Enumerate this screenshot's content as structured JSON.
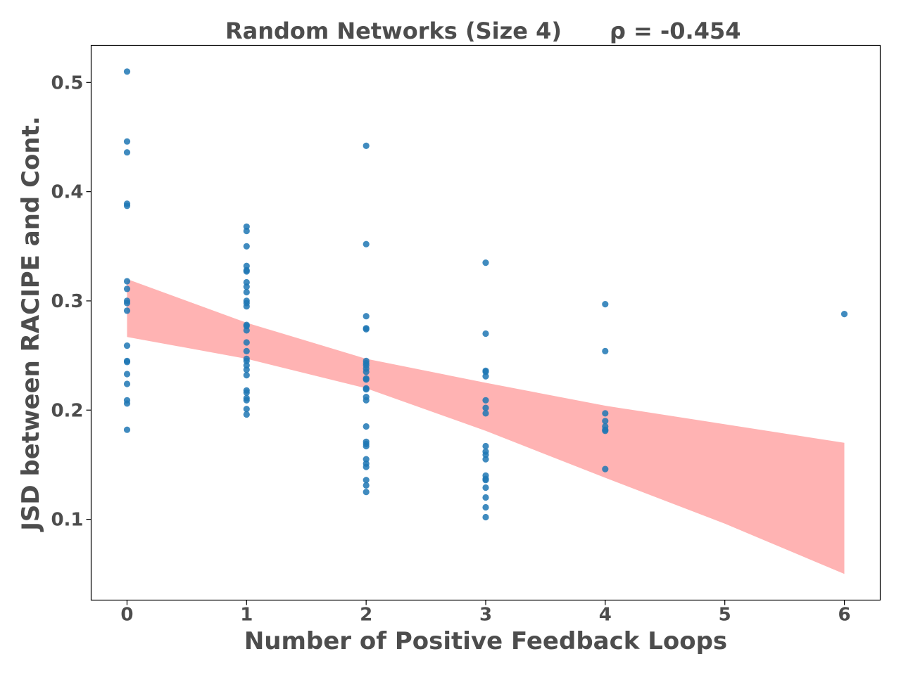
{
  "chart_data": {
    "type": "scatter",
    "title": "Random Networks (Size 4)",
    "annotation": "ρ = -0.454",
    "xlabel": "Number of Positive Feedback Loops",
    "ylabel": "JSD between RACIPE and Cont.",
    "xlim": [
      -0.3,
      6.3
    ],
    "ylim": [
      0.026,
      0.534
    ],
    "x_ticks": [
      0,
      1,
      2,
      3,
      4,
      5,
      6
    ],
    "x_tick_labels": [
      "0",
      "1",
      "2",
      "3",
      "4",
      "5",
      "6"
    ],
    "y_ticks": [
      0.1,
      0.2,
      0.3,
      0.4,
      0.5
    ],
    "y_tick_labels": [
      "0.1",
      "0.2",
      "0.3",
      "0.4",
      "0.5"
    ],
    "grid": false,
    "point_color": "#1f77b4",
    "band_color": "#ff8080",
    "series": [
      {
        "x": [
          0,
          0,
          0,
          0,
          0,
          0,
          0,
          0,
          0,
          0,
          0,
          0,
          0,
          0,
          0,
          0,
          0,
          0,
          1,
          1,
          1,
          1,
          1,
          1,
          1,
          1,
          1,
          1,
          1,
          1,
          1,
          1,
          1,
          1,
          1,
          1,
          1,
          1,
          1,
          1,
          1,
          1,
          1,
          1,
          1,
          1,
          2,
          2,
          2,
          2,
          2,
          2,
          2,
          2,
          2,
          2,
          2,
          2,
          2,
          2,
          2,
          2,
          2,
          2,
          2,
          2,
          2,
          2,
          2,
          2,
          2,
          2,
          3,
          3,
          3,
          3,
          3,
          3,
          3,
          3,
          3,
          3,
          3,
          3,
          3,
          3,
          3,
          3,
          3,
          3,
          3,
          4,
          4,
          4,
          4,
          4,
          4,
          4,
          4,
          6
        ],
        "y": [
          0.51,
          0.446,
          0.436,
          0.389,
          0.387,
          0.318,
          0.311,
          0.3,
          0.298,
          0.291,
          0.259,
          0.245,
          0.244,
          0.233,
          0.224,
          0.209,
          0.206,
          0.182,
          0.368,
          0.364,
          0.35,
          0.332,
          0.328,
          0.327,
          0.317,
          0.313,
          0.308,
          0.3,
          0.298,
          0.295,
          0.278,
          0.277,
          0.273,
          0.262,
          0.254,
          0.247,
          0.245,
          0.241,
          0.237,
          0.232,
          0.218,
          0.216,
          0.211,
          0.209,
          0.201,
          0.196,
          0.131,
          0.442,
          0.352,
          0.286,
          0.275,
          0.274,
          0.245,
          0.243,
          0.241,
          0.238,
          0.235,
          0.229,
          0.228,
          0.22,
          0.219,
          0.212,
          0.209,
          0.185,
          0.171,
          0.169,
          0.167,
          0.155,
          0.151,
          0.148,
          0.136,
          0.125,
          0.111,
          0.335,
          0.27,
          0.236,
          0.235,
          0.231,
          0.209,
          0.202,
          0.197,
          0.167,
          0.162,
          0.159,
          0.155,
          0.14,
          0.137,
          0.136,
          0.129,
          0.12,
          0.102,
          0.297,
          0.254,
          0.197,
          0.19,
          0.185,
          0.182,
          0.181,
          0.146,
          0.288
        ]
      }
    ],
    "confidence_band": {
      "x": [
        0,
        1,
        2,
        3,
        4,
        5,
        6
      ],
      "upper": [
        0.32,
        0.28,
        0.247,
        0.225,
        0.204,
        0.187,
        0.17
      ],
      "lower": [
        0.267,
        0.247,
        0.22,
        0.181,
        0.138,
        0.096,
        0.05
      ]
    }
  }
}
